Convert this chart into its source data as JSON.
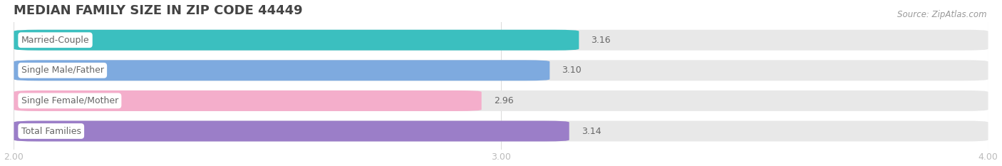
{
  "title": "MEDIAN FAMILY SIZE IN ZIP CODE 44449",
  "source": "Source: ZipAtlas.com",
  "categories": [
    "Married-Couple",
    "Single Male/Father",
    "Single Female/Mother",
    "Total Families"
  ],
  "values": [
    3.16,
    3.1,
    2.96,
    3.14
  ],
  "bar_colors": [
    "#3bbfbf",
    "#7eaadf",
    "#f4aecb",
    "#9b7ec8"
  ],
  "xlim": [
    2.0,
    4.0
  ],
  "xticks": [
    2.0,
    3.0,
    4.0
  ],
  "xtick_labels": [
    "2.00",
    "3.00",
    "4.00"
  ],
  "label_fontsize": 9,
  "value_fontsize": 9,
  "title_fontsize": 13,
  "source_fontsize": 8.5,
  "background_color": "#ffffff",
  "bar_bg_color": "#e8e8e8",
  "bar_height": 0.68,
  "bar_gap": 0.15,
  "label_color": "#666666",
  "value_color": "#666666",
  "title_color": "#444444",
  "source_color": "#999999",
  "tick_color": "#bbbbbb",
  "grid_color": "#dddddd",
  "label_box_color": "#ffffff"
}
